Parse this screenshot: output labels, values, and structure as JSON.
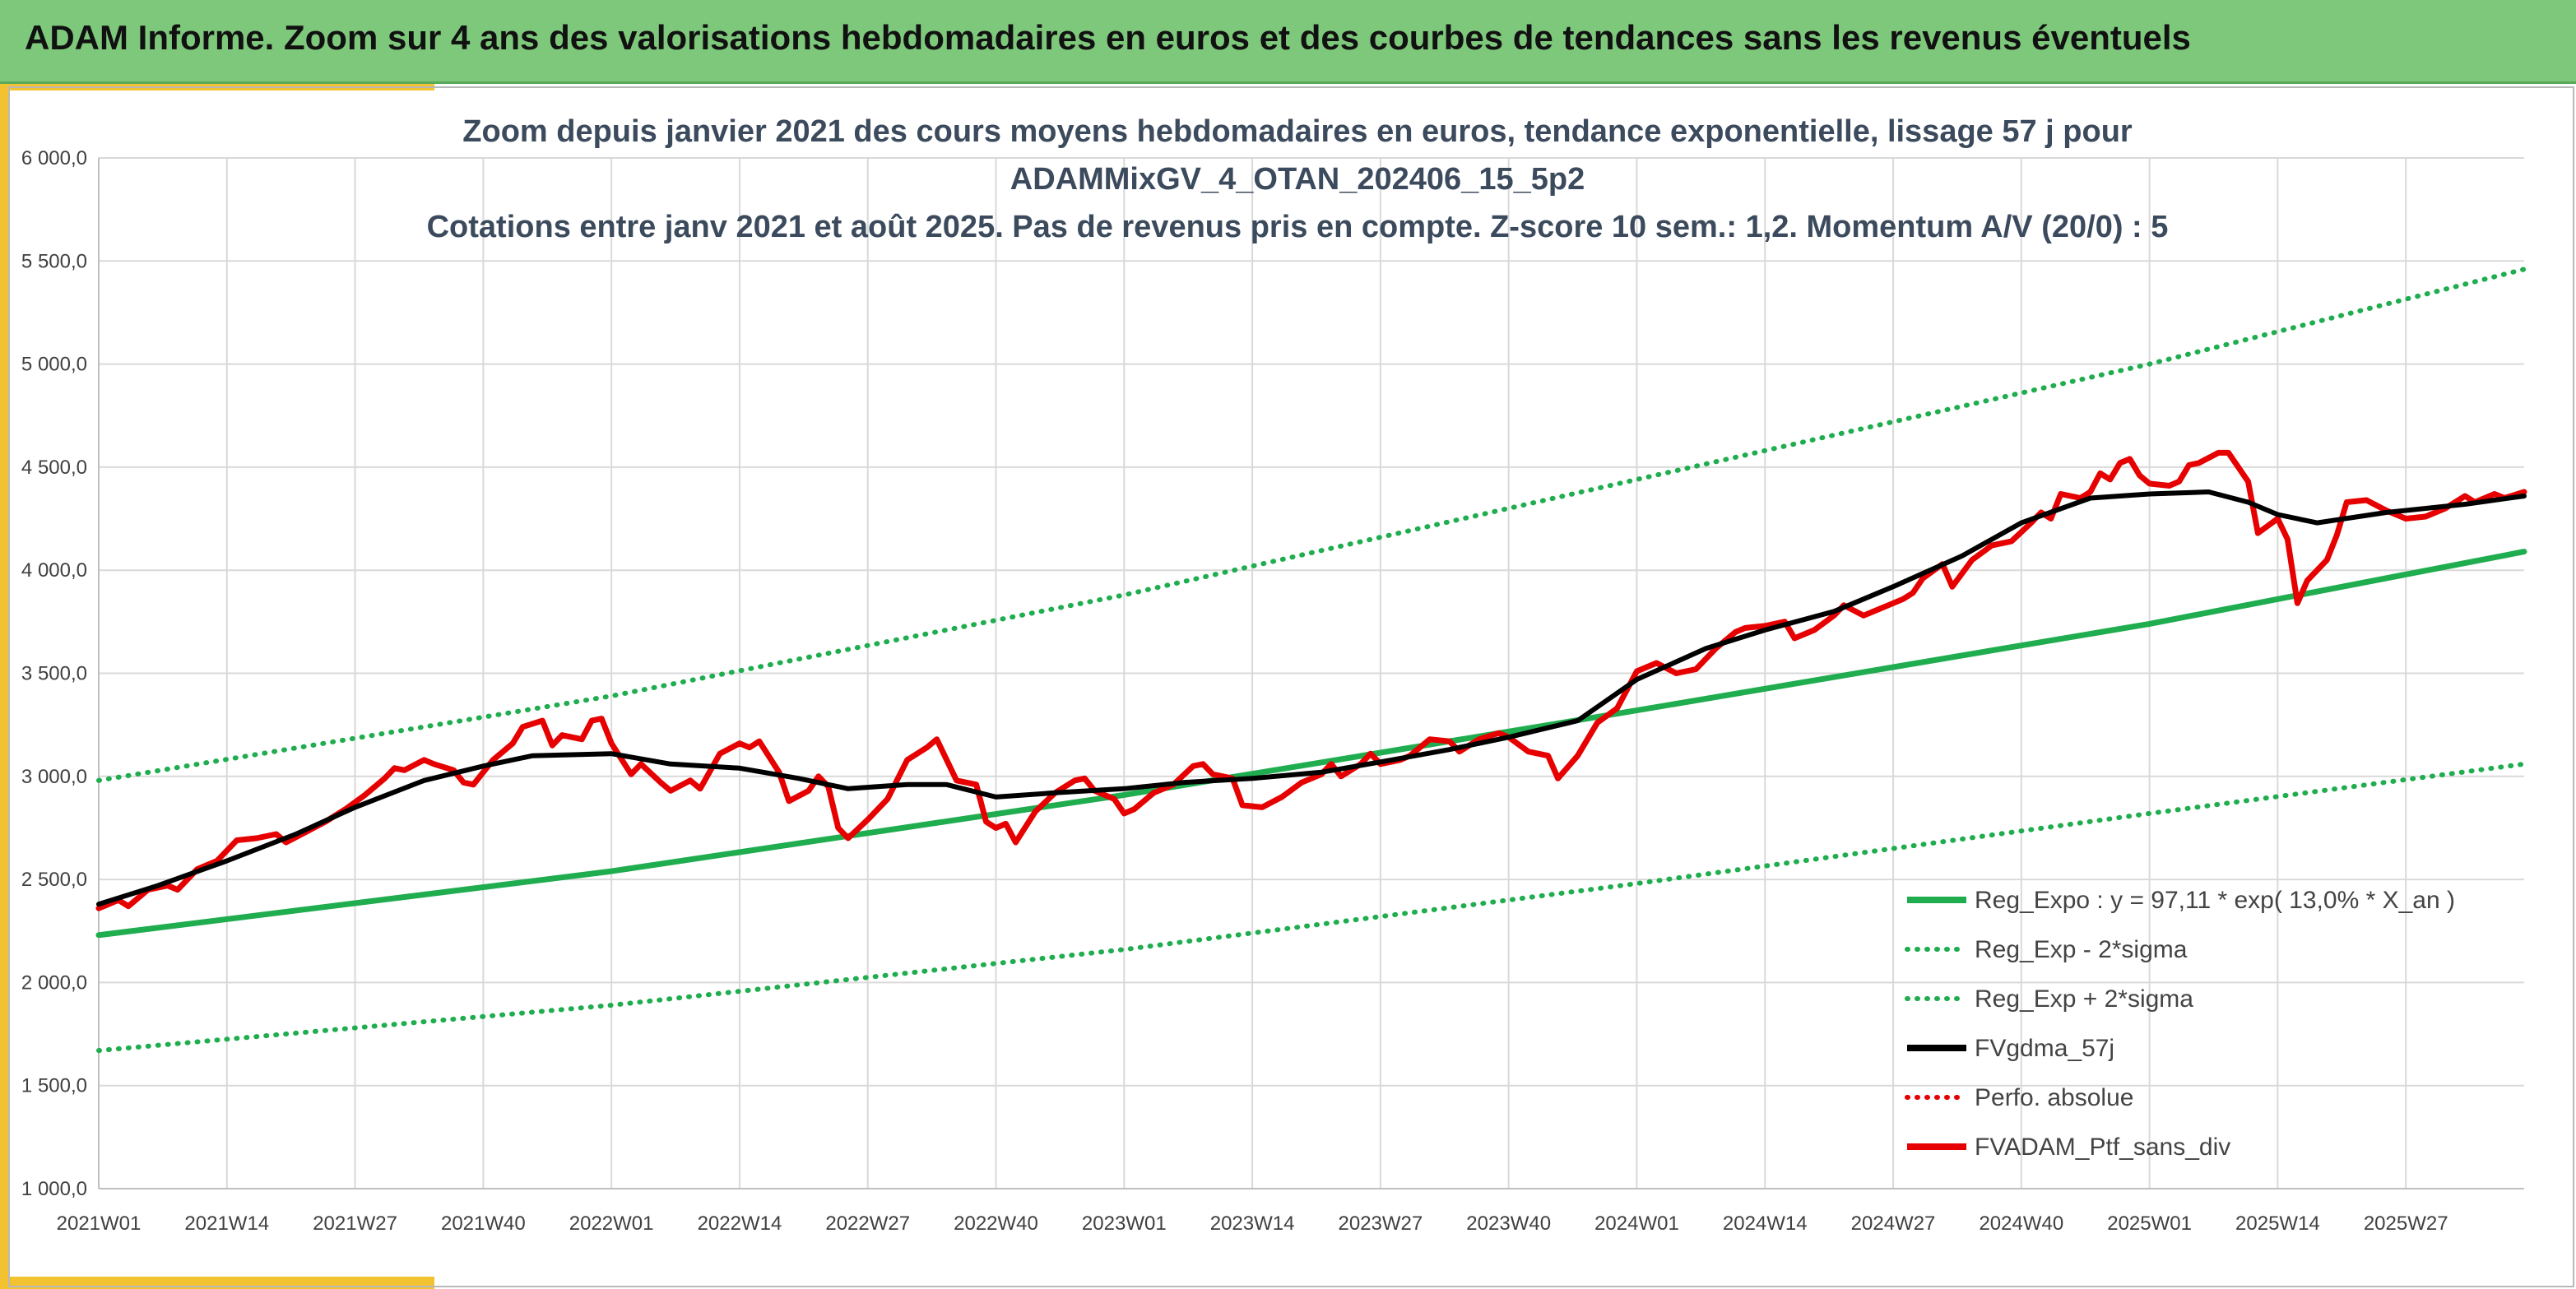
{
  "header": {
    "title": "ADAM Informe. Zoom sur 4 ans des valorisations hebdomadaires en euros et des courbes de tendances sans les revenus éventuels"
  },
  "colors": {
    "header_bg": "#7ec87c",
    "accent": "#f2c230",
    "reg_expo": "#1fad4f",
    "fvgdma": "#000000",
    "perfo": "#e60000",
    "fvadam": "#e60000"
  },
  "chart_data": {
    "type": "line",
    "title_lines": [
      "Zoom depuis janvier 2021 des cours moyens hebdomadaires en euros, tendance exponentielle, lissage 57 j pour",
      "ADAMMixGV_4_OTAN_202406_15_5p2",
      "Cotations entre janv 2021 et août 2025. Pas de revenus pris en compte. Z-score 10 sem.: 1,2. Momentum A/V (20/0) : 5"
    ],
    "xlabel": "",
    "ylabel": "",
    "ylim": [
      1000,
      6000
    ],
    "y_ticks": [
      1000,
      1500,
      2000,
      2500,
      3000,
      3500,
      4000,
      4500,
      5000,
      5500,
      6000
    ],
    "y_tick_labels": [
      "1 000,0",
      "1 500,0",
      "2 000,0",
      "2 500,0",
      "3 000,0",
      "3 500,0",
      "4 000,0",
      "4 500,0",
      "5 000,0",
      "5 500,0",
      "6 000,0"
    ],
    "x_tick_labels": [
      "2021W01",
      "2021W14",
      "2021W27",
      "2021W40",
      "2022W01",
      "2022W14",
      "2022W27",
      "2022W40",
      "2023W01",
      "2023W14",
      "2023W27",
      "2023W40",
      "2024W01",
      "2024W14",
      "2024W27",
      "2024W40",
      "2025W01",
      "2025W14",
      "2025W27"
    ],
    "x_tick_weeks": [
      0,
      13,
      26,
      39,
      52,
      65,
      78,
      91,
      104,
      117,
      130,
      143,
      156,
      169,
      182,
      195,
      208,
      221,
      234
    ],
    "x_range_weeks": [
      0,
      246
    ],
    "grid": "vertical and horizontal",
    "legend_position": "bottom-right",
    "series": [
      {
        "name": "Reg_Expo : y = 97,11 * exp( 13,0% *  X_an )",
        "style": "solid",
        "color": "#1fad4f",
        "points": [
          [
            0,
            2230
          ],
          [
            52,
            2540
          ],
          [
            104,
            2910
          ],
          [
            156,
            3320
          ],
          [
            208,
            3740
          ],
          [
            246,
            4090
          ]
        ]
      },
      {
        "name": "Reg_Exp - 2*sigma",
        "style": "dotted",
        "color": "#1fad4f",
        "points": [
          [
            0,
            1670
          ],
          [
            52,
            1890
          ],
          [
            104,
            2160
          ],
          [
            156,
            2480
          ],
          [
            208,
            2820
          ],
          [
            246,
            3060
          ]
        ]
      },
      {
        "name": "Reg_Exp + 2*sigma",
        "style": "dotted",
        "color": "#1fad4f",
        "points": [
          [
            0,
            2980
          ],
          [
            52,
            3390
          ],
          [
            104,
            3880
          ],
          [
            156,
            4440
          ],
          [
            208,
            5000
          ],
          [
            246,
            5460
          ]
        ]
      },
      {
        "name": "FVgdma_57j",
        "style": "solid",
        "color": "#000000",
        "points": [
          [
            0,
            2380
          ],
          [
            6,
            2470
          ],
          [
            13,
            2590
          ],
          [
            20,
            2720
          ],
          [
            26,
            2850
          ],
          [
            33,
            2980
          ],
          [
            39,
            3050
          ],
          [
            44,
            3100
          ],
          [
            52,
            3110
          ],
          [
            58,
            3060
          ],
          [
            65,
            3040
          ],
          [
            71,
            2990
          ],
          [
            76,
            2940
          ],
          [
            82,
            2960
          ],
          [
            86,
            2960
          ],
          [
            91,
            2900
          ],
          [
            97,
            2920
          ],
          [
            104,
            2940
          ],
          [
            110,
            2970
          ],
          [
            117,
            2990
          ],
          [
            124,
            3020
          ],
          [
            130,
            3070
          ],
          [
            137,
            3130
          ],
          [
            143,
            3190
          ],
          [
            150,
            3270
          ],
          [
            156,
            3470
          ],
          [
            163,
            3620
          ],
          [
            169,
            3710
          ],
          [
            176,
            3800
          ],
          [
            182,
            3920
          ],
          [
            189,
            4070
          ],
          [
            195,
            4230
          ],
          [
            202,
            4350
          ],
          [
            208,
            4370
          ],
          [
            214,
            4380
          ],
          [
            218,
            4330
          ],
          [
            221,
            4270
          ],
          [
            225,
            4230
          ],
          [
            232,
            4280
          ],
          [
            240,
            4320
          ],
          [
            246,
            4360
          ]
        ]
      },
      {
        "name": "Perfo. absolue",
        "style": "dotted",
        "color": "#e60000",
        "points": []
      },
      {
        "name": "FVADAM_Ptf_sans_div",
        "style": "solid",
        "color": "#e60000",
        "points": [
          [
            0,
            2360
          ],
          [
            2,
            2400
          ],
          [
            3,
            2370
          ],
          [
            5,
            2450
          ],
          [
            7,
            2470
          ],
          [
            8,
            2450
          ],
          [
            10,
            2550
          ],
          [
            12,
            2590
          ],
          [
            14,
            2690
          ],
          [
            16,
            2700
          ],
          [
            18,
            2720
          ],
          [
            19,
            2680
          ],
          [
            21,
            2730
          ],
          [
            23,
            2780
          ],
          [
            25,
            2840
          ],
          [
            27,
            2910
          ],
          [
            29,
            2990
          ],
          [
            30,
            3040
          ],
          [
            31,
            3030
          ],
          [
            33,
            3080
          ],
          [
            34,
            3060
          ],
          [
            36,
            3030
          ],
          [
            37,
            2970
          ],
          [
            38,
            2960
          ],
          [
            40,
            3080
          ],
          [
            42,
            3160
          ],
          [
            43,
            3240
          ],
          [
            45,
            3270
          ],
          [
            46,
            3150
          ],
          [
            47,
            3200
          ],
          [
            49,
            3180
          ],
          [
            50,
            3270
          ],
          [
            51,
            3280
          ],
          [
            52,
            3160
          ],
          [
            54,
            3010
          ],
          [
            55,
            3060
          ],
          [
            57,
            2970
          ],
          [
            58,
            2930
          ],
          [
            60,
            2980
          ],
          [
            61,
            2940
          ],
          [
            63,
            3110
          ],
          [
            65,
            3160
          ],
          [
            66,
            3140
          ],
          [
            67,
            3170
          ],
          [
            69,
            3020
          ],
          [
            70,
            2880
          ],
          [
            72,
            2930
          ],
          [
            73,
            3000
          ],
          [
            74,
            2950
          ],
          [
            75,
            2750
          ],
          [
            76,
            2700
          ],
          [
            78,
            2790
          ],
          [
            80,
            2890
          ],
          [
            82,
            3080
          ],
          [
            84,
            3140
          ],
          [
            85,
            3180
          ],
          [
            87,
            2980
          ],
          [
            89,
            2960
          ],
          [
            90,
            2780
          ],
          [
            91,
            2750
          ],
          [
            92,
            2770
          ],
          [
            93,
            2680
          ],
          [
            95,
            2830
          ],
          [
            97,
            2920
          ],
          [
            99,
            2980
          ],
          [
            100,
            2990
          ],
          [
            101,
            2930
          ],
          [
            103,
            2890
          ],
          [
            104,
            2820
          ],
          [
            105,
            2840
          ],
          [
            107,
            2920
          ],
          [
            109,
            2960
          ],
          [
            111,
            3050
          ],
          [
            112,
            3060
          ],
          [
            113,
            3010
          ],
          [
            115,
            2990
          ],
          [
            116,
            2860
          ],
          [
            118,
            2850
          ],
          [
            120,
            2900
          ],
          [
            122,
            2970
          ],
          [
            124,
            3010
          ],
          [
            125,
            3060
          ],
          [
            126,
            3000
          ],
          [
            128,
            3060
          ],
          [
            129,
            3110
          ],
          [
            130,
            3060
          ],
          [
            132,
            3080
          ],
          [
            133,
            3100
          ],
          [
            135,
            3180
          ],
          [
            137,
            3170
          ],
          [
            138,
            3120
          ],
          [
            140,
            3180
          ],
          [
            142,
            3210
          ],
          [
            143,
            3190
          ],
          [
            145,
            3120
          ],
          [
            147,
            3100
          ],
          [
            148,
            2990
          ],
          [
            150,
            3100
          ],
          [
            152,
            3260
          ],
          [
            154,
            3330
          ],
          [
            156,
            3510
          ],
          [
            158,
            3550
          ],
          [
            160,
            3500
          ],
          [
            162,
            3520
          ],
          [
            164,
            3620
          ],
          [
            166,
            3700
          ],
          [
            167,
            3720
          ],
          [
            169,
            3730
          ],
          [
            171,
            3750
          ],
          [
            172,
            3670
          ],
          [
            174,
            3710
          ],
          [
            176,
            3780
          ],
          [
            177,
            3830
          ],
          [
            179,
            3780
          ],
          [
            181,
            3820
          ],
          [
            183,
            3860
          ],
          [
            184,
            3890
          ],
          [
            185,
            3960
          ],
          [
            187,
            4030
          ],
          [
            188,
            3920
          ],
          [
            190,
            4050
          ],
          [
            192,
            4120
          ],
          [
            194,
            4140
          ],
          [
            196,
            4230
          ],
          [
            197,
            4280
          ],
          [
            198,
            4250
          ],
          [
            199,
            4370
          ],
          [
            201,
            4350
          ],
          [
            202,
            4380
          ],
          [
            203,
            4470
          ],
          [
            204,
            4440
          ],
          [
            205,
            4520
          ],
          [
            206,
            4540
          ],
          [
            207,
            4460
          ],
          [
            208,
            4420
          ],
          [
            210,
            4410
          ],
          [
            211,
            4430
          ],
          [
            212,
            4510
          ],
          [
            213,
            4520
          ],
          [
            215,
            4570
          ],
          [
            216,
            4570
          ],
          [
            218,
            4430
          ],
          [
            219,
            4180
          ],
          [
            221,
            4250
          ],
          [
            222,
            4150
          ],
          [
            223,
            3840
          ],
          [
            224,
            3950
          ],
          [
            226,
            4050
          ],
          [
            227,
            4170
          ],
          [
            228,
            4330
          ],
          [
            230,
            4340
          ],
          [
            232,
            4290
          ],
          [
            234,
            4250
          ],
          [
            236,
            4260
          ],
          [
            238,
            4300
          ],
          [
            240,
            4360
          ],
          [
            241,
            4330
          ],
          [
            243,
            4370
          ],
          [
            244,
            4350
          ],
          [
            246,
            4380
          ]
        ]
      }
    ]
  }
}
